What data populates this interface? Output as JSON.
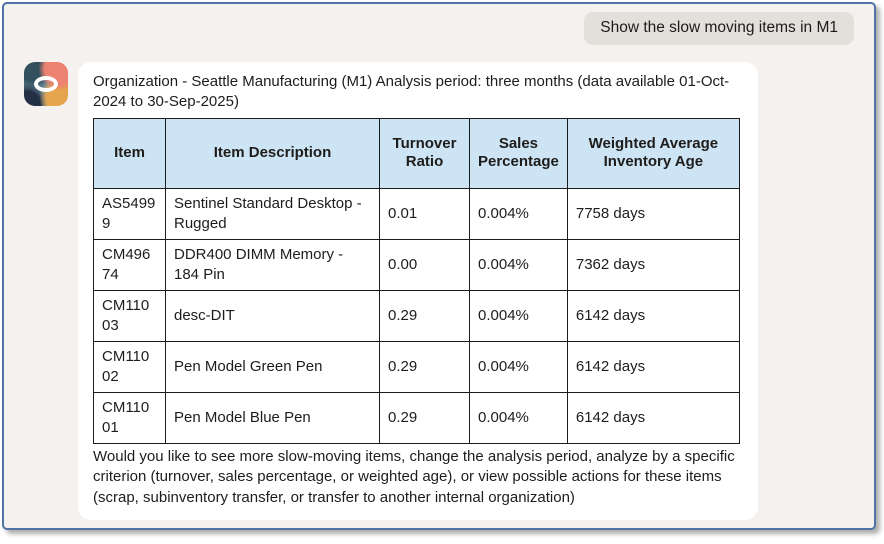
{
  "window": {
    "frame_border_color": "#4d74a4",
    "background_color": "#f4f1ee"
  },
  "user_message": {
    "text": "Show the slow moving items in M1",
    "bubble_color": "#e3e0dc"
  },
  "assistant": {
    "avatar_icon": "oracle-logo",
    "intro": "Organization - Seattle Manufacturing (M1) Analysis period: three months (data available 01-Oct-2024 to 30-Sep-2025)",
    "table": {
      "header_bg_color": "#cde4f4",
      "border_color": "#1c1c1c",
      "headers": [
        "Item",
        "Item Description",
        "Turnover Ratio",
        "Sales Percentage",
        "Weighted Average Inventory Age"
      ],
      "rows": [
        [
          "AS54999",
          "Sentinel Standard Desktop - Rugged",
          "0.01",
          "0.004%",
          "7758 days"
        ],
        [
          "CM49674",
          "DDR400 DIMM Memory - 184 Pin",
          "0.00",
          "0.004%",
          "7362 days"
        ],
        [
          "CM11003",
          "desc-DIT",
          "0.29",
          "0.004%",
          "6142 days"
        ],
        [
          "CM11002",
          "Pen Model Green Pen",
          "0.29",
          "0.004%",
          "6142 days"
        ],
        [
          "CM11001",
          "Pen Model Blue Pen",
          "0.29",
          "0.004%",
          "6142 days"
        ]
      ]
    },
    "footer": "Would you like to see more slow-moving items, change the analysis period, analyze by a specific criterion (turnover, sales percentage, or weighted age), or view possible actions for these items (scrap, subinventory transfer, or transfer to another internal organization)"
  }
}
